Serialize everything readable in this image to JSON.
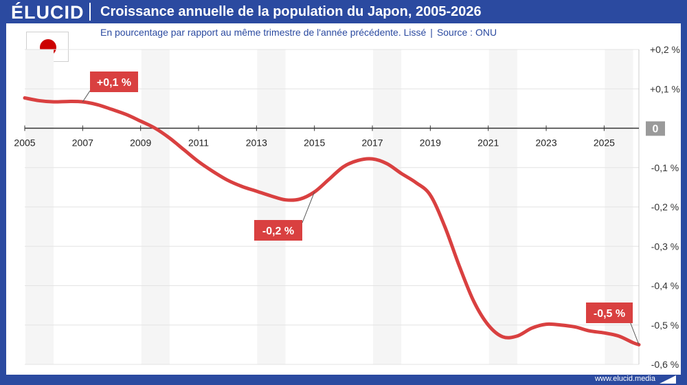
{
  "header": {
    "logo": "ÉLUCID",
    "title": "Croissance annuelle de la population du Japon, 2005-2026",
    "subtitle": "En pourcentage par rapport au même trimestre de l'année précédente. Lissé",
    "source_sep": "|",
    "source": "Source : ONU"
  },
  "footer": {
    "url": "www.elucid.media"
  },
  "colors": {
    "brand": "#2b4aa0",
    "line": "#d94040",
    "label_bg": "#d94040",
    "band": "#f5f5f5",
    "zero_badge": "#9a9a9a"
  },
  "chart_data": {
    "type": "line",
    "title": "Croissance annuelle de la population du Japon, 2005-2026",
    "subtitle": "En pourcentage par rapport au même trimestre de l'année précédente. Lissé",
    "xlabel": "",
    "ylabel": "",
    "xlim": [
      2005,
      2026.2
    ],
    "ylim": [
      -0.6,
      0.2
    ],
    "x_ticks": [
      "2005",
      "2007",
      "2009",
      "2011",
      "2013",
      "2015",
      "2017",
      "2019",
      "2021",
      "2023",
      "2025"
    ],
    "y_ticks": [
      "+0,2 %",
      "+0,1 %",
      "0",
      "-0,1 %",
      "-0,2 %",
      "-0,3 %",
      "-0,4 %",
      "-0,5 %",
      "-0,6 %"
    ],
    "grid": true,
    "series": [
      {
        "x": [
          2005,
          2005.5,
          2006,
          2006.5,
          2007,
          2007.5,
          2008,
          2008.5,
          2009,
          2009.5,
          2010,
          2010.5,
          2011,
          2011.5,
          2012,
          2012.5,
          2013,
          2013.5,
          2014,
          2014.5,
          2015,
          2015.5,
          2016,
          2016.5,
          2017,
          2017.5,
          2018,
          2018.5,
          2019,
          2019.5,
          2020,
          2020.5,
          2021,
          2021.5,
          2022,
          2022.5,
          2023,
          2023.5,
          2024,
          2024.5,
          2025,
          2025.5,
          2026,
          2026.2
        ],
        "y": [
          0.077,
          0.07,
          0.067,
          0.068,
          0.067,
          0.06,
          0.048,
          0.035,
          0.018,
          0.0,
          -0.025,
          -0.055,
          -0.085,
          -0.11,
          -0.132,
          -0.148,
          -0.16,
          -0.172,
          -0.182,
          -0.18,
          -0.162,
          -0.13,
          -0.098,
          -0.082,
          -0.078,
          -0.09,
          -0.115,
          -0.138,
          -0.17,
          -0.25,
          -0.35,
          -0.44,
          -0.5,
          -0.53,
          -0.528,
          -0.508,
          -0.498,
          -0.5,
          -0.505,
          -0.515,
          -0.52,
          -0.528,
          -0.545,
          -0.55
        ]
      }
    ],
    "annotations": [
      {
        "text": "+0,1 %",
        "x": 2007,
        "y": 0.067
      },
      {
        "text": "-0,2 %",
        "x": 2015,
        "y": -0.162
      },
      {
        "text": "-0,5 %",
        "x": 2026.2,
        "y": -0.55
      }
    ]
  }
}
